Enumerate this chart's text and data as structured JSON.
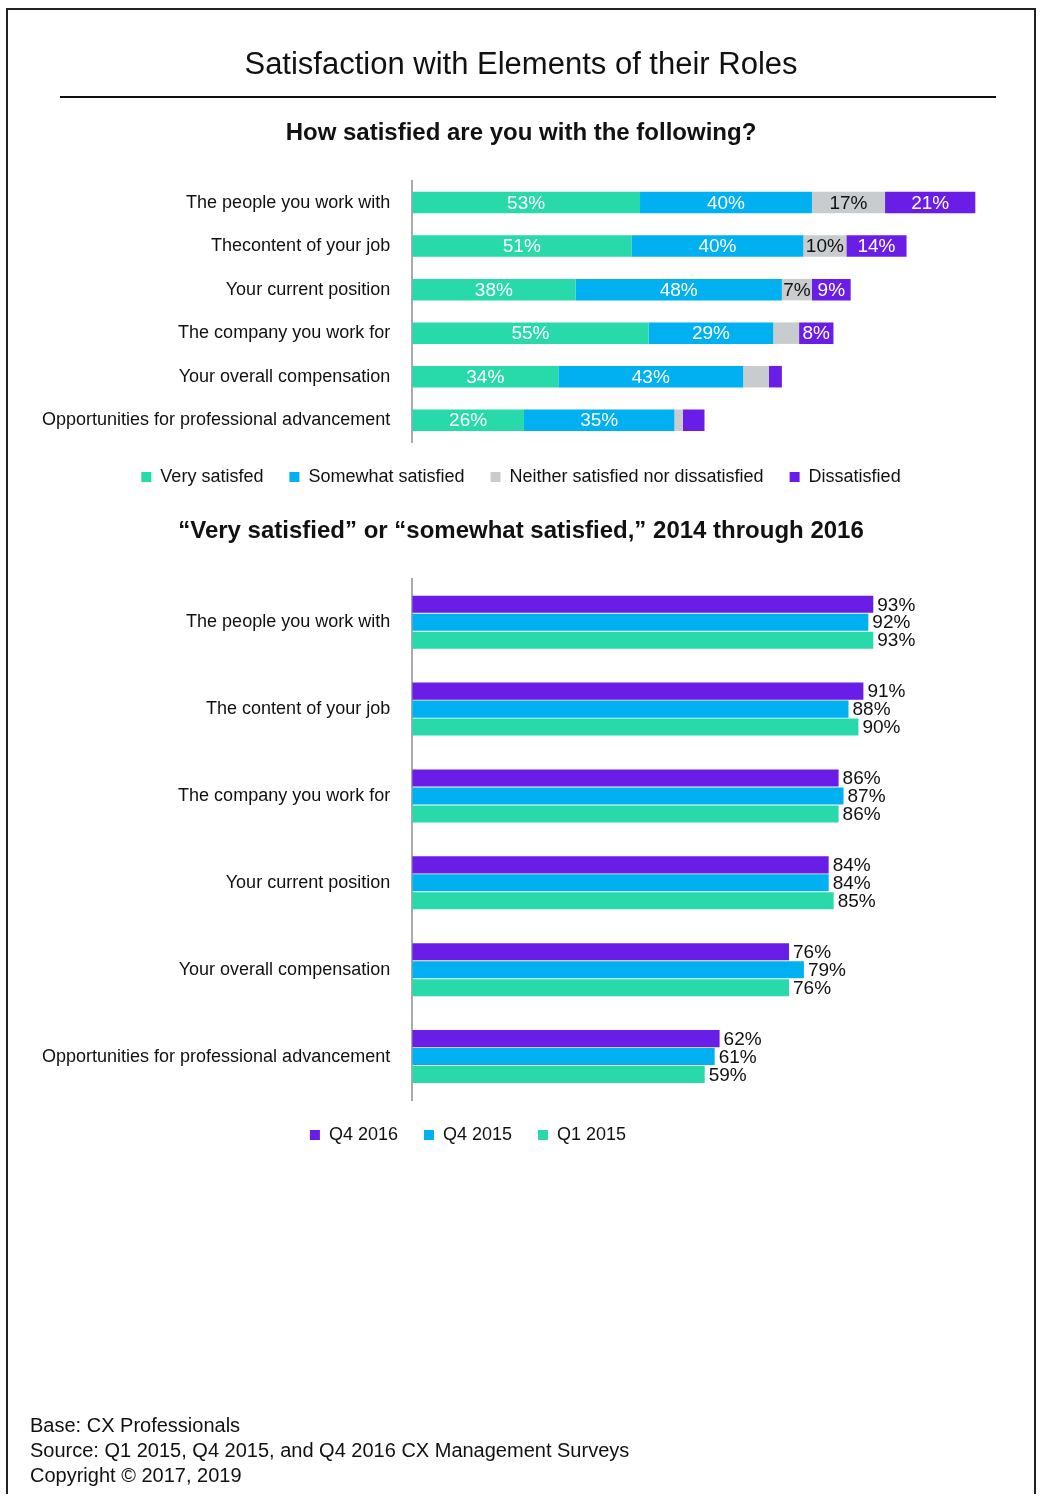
{
  "chart_data": [
    {
      "type": "bar",
      "title": "Satisfaction with Elements of their Roles",
      "subtitle": "How satisfied are you with the following?",
      "orientation": "horizontal",
      "stacked": true,
      "legend": "bottom",
      "categories": [
        "The people you work with",
        "Thecontent of your job",
        "Your current position",
        "The company you work for",
        "Your overall compensation",
        "Opportunities for professional advancement"
      ],
      "series": [
        {
          "name": "Very satisfed",
          "color": "#28d9a9",
          "values": [
            53,
            51,
            38,
            55,
            34,
            26
          ],
          "value_labels": [
            "53%",
            "51%",
            "38%",
            "55%",
            "34%",
            "26%"
          ]
        },
        {
          "name": "Somewhat satisfied",
          "color": "#00b0f0",
          "values": [
            40,
            40,
            48,
            29,
            43,
            35
          ],
          "value_labels": [
            "40%",
            "40%",
            "48%",
            "29%",
            "43%",
            "35%"
          ]
        },
        {
          "name": "Neither satisfied nor dissatisfied",
          "color": "#c9cccf",
          "values": [
            17,
            10,
            7,
            6,
            6,
            2
          ],
          "value_labels": [
            "17%",
            "10%",
            "7%",
            null,
            null,
            null
          ]
        },
        {
          "name": "Dissatisfied",
          "color": "#6a1de6",
          "values": [
            21,
            14,
            9,
            8,
            3,
            5
          ],
          "value_labels": [
            "21%",
            "14%",
            "9%",
            "8%",
            null,
            null
          ]
        }
      ]
    },
    {
      "type": "bar",
      "title": "“Very satisfied” or “somewhat satisfied,” 2014 through 2016",
      "orientation": "horizontal",
      "legend": "bottom",
      "categories": [
        "The people you work with",
        "The content of your job",
        "The company you work for",
        "Your current position",
        "Your overall compensation",
        "Opportunities for professional advancement"
      ],
      "series": [
        {
          "name": "Q4 2016",
          "color": "#6a1de6",
          "values": [
            93,
            91,
            86,
            84,
            76,
            62
          ],
          "value_labels": [
            "93%",
            "91%",
            "86%",
            "84%",
            "76%",
            "62%"
          ]
        },
        {
          "name": "Q4 2015",
          "color": "#00b0f0",
          "values": [
            92,
            88,
            87,
            84,
            79,
            61
          ],
          "value_labels": [
            "92%",
            "88%",
            "87%",
            "84%",
            "79%",
            "61%"
          ]
        },
        {
          "name": "Q1 2015",
          "color": "#28d9a9",
          "values": [
            93,
            90,
            86,
            85,
            76,
            59
          ],
          "value_labels": [
            "93%",
            "90%",
            "86%",
            "85%",
            "76%",
            "59%"
          ]
        }
      ],
      "annotations": [
        "Base:   CX Professionals",
        "Source:   Q1 2015, Q4 2015, and Q4 2016 CX Management Surveys",
        "Copyright © 2017, 2019"
      ]
    }
  ]
}
